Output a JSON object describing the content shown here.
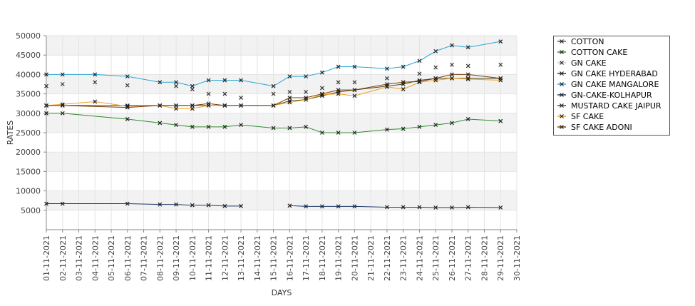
{
  "chart_data": {
    "type": "line",
    "title": "",
    "xlabel": "DAYS",
    "ylabel": "RATES",
    "ylim": [
      0,
      50000
    ],
    "yticks": [
      5000,
      10000,
      15000,
      20000,
      25000,
      30000,
      35000,
      40000,
      45000,
      50000
    ],
    "grid": true,
    "legend_position": "right",
    "categories": [
      "01-11-2021",
      "02-11-2021",
      "03-11-2021",
      "04-11-2021",
      "05-11-2021",
      "06-11-2021",
      "07-11-2021",
      "08-11-2021",
      "09-11-2021",
      "10-11-2021",
      "11-11-2021",
      "12-11-2021",
      "13-11-2021",
      "14-11-2021",
      "15-11-2021",
      "16-11-2021",
      "17-11-2021",
      "18-11-2021",
      "19-11-2021",
      "20-11-2021",
      "21-11-2021",
      "22-11-2021",
      "23-11-2021",
      "24-11-2021",
      "25-11-2021",
      "26-11-2021",
      "27-11-2021",
      "28-11-2021",
      "29-11-2021",
      "30-11-2021"
    ],
    "series": [
      {
        "name": "COTTON",
        "color": "#3a7a1a",
        "points": []
      },
      {
        "name": "COTTON CAKE",
        "color": "#2e8b2e",
        "points": [
          [
            "01-11-2021",
            30000
          ],
          [
            "02-11-2021",
            30000
          ],
          [
            "06-11-2021",
            28500
          ],
          [
            "08-11-2021",
            27500
          ],
          [
            "09-11-2021",
            27000
          ],
          [
            "10-11-2021",
            26500
          ],
          [
            "11-11-2021",
            26500
          ],
          [
            "12-11-2021",
            26500
          ],
          [
            "13-11-2021",
            27000
          ],
          [
            "15-11-2021",
            26200
          ],
          [
            "16-11-2021",
            26200
          ],
          [
            "17-11-2021",
            26500
          ],
          [
            "18-11-2021",
            25000
          ],
          [
            "19-11-2021",
            25000
          ],
          [
            "20-11-2021",
            25000
          ],
          [
            "22-11-2021",
            25800
          ],
          [
            "23-11-2021",
            26000
          ],
          [
            "24-11-2021",
            26500
          ],
          [
            "25-11-2021",
            27000
          ],
          [
            "26-11-2021",
            27500
          ],
          [
            "27-11-2021",
            28500
          ],
          [
            "29-11-2021",
            28000
          ]
        ]
      },
      {
        "name": "GN CAKE",
        "color": "#c8c8c8",
        "points": [
          [
            "01-11-2021",
            37000
          ],
          [
            "02-11-2021",
            37500
          ],
          [
            "04-11-2021",
            38000
          ],
          [
            "06-11-2021",
            37200
          ],
          [
            "09-11-2021",
            37000
          ],
          [
            "10-11-2021",
            36200
          ],
          [
            "11-11-2021",
            35000
          ],
          [
            "12-11-2021",
            35000
          ],
          [
            "13-11-2021",
            34000
          ],
          [
            "15-11-2021",
            35000
          ],
          [
            "16-11-2021",
            35500
          ],
          [
            "17-11-2021",
            35500
          ],
          [
            "18-11-2021",
            36500
          ],
          [
            "19-11-2021",
            38000
          ],
          [
            "20-11-2021",
            38000
          ],
          [
            "22-11-2021",
            39000
          ],
          [
            "23-11-2021",
            38000
          ],
          [
            "24-11-2021",
            40200
          ],
          [
            "25-11-2021",
            41800
          ],
          [
            "26-11-2021",
            42500
          ],
          [
            "27-11-2021",
            42200
          ],
          [
            "29-11-2021",
            42500
          ]
        ]
      },
      {
        "name": "GN CAKE HYDERABAD",
        "color": "#4b1f6f",
        "points": []
      },
      {
        "name": "GN CAKE MANGALORE",
        "color": "#2aa6d6",
        "points": [
          [
            "01-11-2021",
            40000
          ],
          [
            "02-11-2021",
            40000
          ],
          [
            "04-11-2021",
            40000
          ],
          [
            "06-11-2021",
            39500
          ],
          [
            "08-11-2021",
            38000
          ],
          [
            "09-11-2021",
            38000
          ],
          [
            "10-11-2021",
            37000
          ],
          [
            "11-11-2021",
            38500
          ],
          [
            "12-11-2021",
            38500
          ],
          [
            "13-11-2021",
            38500
          ],
          [
            "15-11-2021",
            37000
          ],
          [
            "16-11-2021",
            39500
          ],
          [
            "17-11-2021",
            39500
          ],
          [
            "18-11-2021",
            40500
          ],
          [
            "19-11-2021",
            42000
          ],
          [
            "20-11-2021",
            42000
          ],
          [
            "22-11-2021",
            41500
          ],
          [
            "23-11-2021",
            42000
          ],
          [
            "24-11-2021",
            43500
          ],
          [
            "25-11-2021",
            46000
          ],
          [
            "26-11-2021",
            47500
          ],
          [
            "27-11-2021",
            47000
          ],
          [
            "29-11-2021",
            48500
          ]
        ]
      },
      {
        "name": "GN-CAKE-KOLHAPUR",
        "color": "#1f3a6b",
        "points": [
          [
            "01-11-2021",
            6700
          ],
          [
            "02-11-2021",
            6700
          ],
          [
            "06-11-2021",
            6700
          ],
          [
            "08-11-2021",
            6500
          ],
          [
            "09-11-2021",
            6500
          ],
          [
            "10-11-2021",
            6300
          ],
          [
            "11-11-2021",
            6300
          ],
          [
            "12-11-2021",
            6100
          ],
          [
            "13-11-2021",
            6100
          ],
          null,
          [
            "16-11-2021",
            6200
          ],
          [
            "17-11-2021",
            6000
          ],
          [
            "18-11-2021",
            6000
          ],
          [
            "19-11-2021",
            6000
          ],
          [
            "20-11-2021",
            6000
          ],
          [
            "22-11-2021",
            5800
          ],
          [
            "23-11-2021",
            5800
          ],
          [
            "24-11-2021",
            5800
          ],
          [
            "25-11-2021",
            5700
          ],
          [
            "26-11-2021",
            5700
          ],
          [
            "27-11-2021",
            5800
          ],
          [
            "29-11-2021",
            5700
          ]
        ]
      },
      {
        "name": "MUSTARD CAKE JAIPUR",
        "color": "#4d4d1a",
        "points": [
          [
            "01-11-2021",
            32000
          ],
          [
            "02-11-2021",
            32000
          ],
          [
            "06-11-2021",
            32000
          ],
          [
            "08-11-2021",
            32000
          ],
          [
            "09-11-2021",
            32000
          ],
          [
            "10-11-2021",
            32000
          ],
          [
            "11-11-2021",
            32000
          ],
          [
            "12-11-2021",
            32000
          ],
          [
            "13-11-2021",
            32000
          ],
          [
            "15-11-2021",
            32000
          ],
          [
            "16-11-2021",
            33200
          ],
          [
            "17-11-2021",
            33500
          ],
          [
            "18-11-2021",
            34500
          ],
          [
            "19-11-2021",
            35500
          ],
          [
            "20-11-2021",
            36000
          ],
          [
            "22-11-2021",
            37000
          ],
          [
            "23-11-2021",
            37500
          ],
          [
            "24-11-2021",
            38500
          ],
          [
            "25-11-2021",
            39000
          ],
          [
            "26-11-2021",
            39000
          ],
          [
            "27-11-2021",
            39000
          ],
          [
            "29-11-2021",
            39000
          ]
        ]
      },
      {
        "name": "SF CAKE",
        "color": "#f0a020",
        "points": [
          [
            "01-11-2021",
            32000
          ],
          [
            "02-11-2021",
            32300
          ],
          [
            "04-11-2021",
            33000
          ],
          [
            "06-11-2021",
            31800
          ],
          [
            "08-11-2021",
            32000
          ],
          [
            "09-11-2021",
            31200
          ],
          [
            "10-11-2021",
            31200
          ],
          [
            "11-11-2021",
            32000
          ],
          [
            "12-11-2021",
            32000
          ],
          [
            "13-11-2021",
            32000
          ],
          [
            "15-11-2021",
            32000
          ],
          [
            "16-11-2021",
            32800
          ],
          [
            "17-11-2021",
            33500
          ],
          [
            "18-11-2021",
            34800
          ],
          [
            "19-11-2021",
            35000
          ],
          [
            "20-11-2021",
            34500
          ],
          [
            "22-11-2021",
            36800
          ],
          [
            "23-11-2021",
            36200
          ],
          [
            "24-11-2021",
            38000
          ],
          [
            "25-11-2021",
            38500
          ],
          [
            "26-11-2021",
            39000
          ],
          [
            "27-11-2021",
            38800
          ],
          [
            "29-11-2021",
            38500
          ]
        ]
      },
      {
        "name": "SF CAKE ADONI",
        "color": "#7a3a0a",
        "points": [
          [
            "01-11-2021",
            32000
          ],
          [
            "02-11-2021",
            32000
          ],
          [
            "06-11-2021",
            31500
          ],
          [
            "08-11-2021",
            32000
          ],
          [
            "09-11-2021",
            32000
          ],
          [
            "10-11-2021",
            32000
          ],
          [
            "11-11-2021",
            32500
          ],
          [
            "12-11-2021",
            32000
          ],
          [
            "13-11-2021",
            32000
          ],
          [
            "15-11-2021",
            32000
          ],
          [
            "16-11-2021",
            34000
          ],
          [
            "17-11-2021",
            34000
          ],
          [
            "18-11-2021",
            35000
          ],
          [
            "19-11-2021",
            36000
          ],
          [
            "20-11-2021",
            36000
          ],
          [
            "22-11-2021",
            37500
          ],
          [
            "23-11-2021",
            38000
          ],
          [
            "24-11-2021",
            38200
          ],
          [
            "25-11-2021",
            39000
          ],
          [
            "26-11-2021",
            40000
          ],
          [
            "27-11-2021",
            40000
          ],
          [
            "29-11-2021",
            39000
          ]
        ]
      }
    ]
  }
}
